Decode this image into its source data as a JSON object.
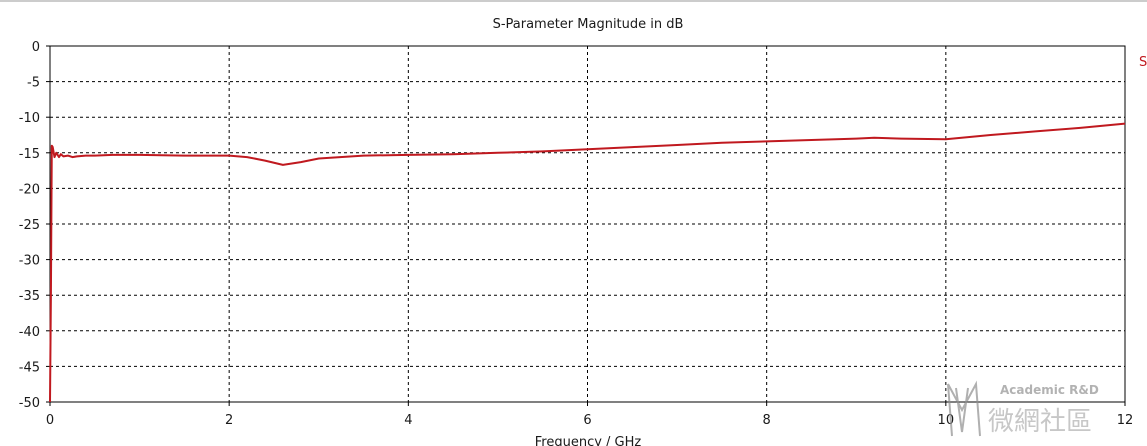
{
  "chart_data": {
    "type": "line",
    "title": "S-Parameter Magnitude in dB",
    "xlabel": "Frequency / GHz",
    "ylabel": "",
    "xlim": [
      0,
      12
    ],
    "ylim": [
      -50,
      0
    ],
    "x_ticks": [
      "0",
      "2",
      "4",
      "6",
      "8",
      "10",
      "12"
    ],
    "y_ticks": [
      "0",
      "-5",
      "-10",
      "-15",
      "-20",
      "-25",
      "-30",
      "-35",
      "-40",
      "-45",
      "-50"
    ],
    "grid": true,
    "legend_position": "right",
    "series": [
      {
        "name": "S",
        "color": "#c0191f",
        "x": [
          0,
          0.01,
          0.02,
          0.03,
          0.05,
          0.07,
          0.1,
          0.12,
          0.15,
          0.2,
          0.25,
          0.3,
          0.4,
          0.5,
          0.7,
          1.0,
          1.5,
          2.0,
          2.2,
          2.4,
          2.6,
          2.8,
          3.0,
          3.5,
          4.0,
          4.5,
          5.0,
          5.5,
          6.0,
          6.5,
          7.0,
          7.5,
          8.0,
          8.5,
          9.0,
          9.2,
          9.5,
          10.0,
          10.5,
          11.0,
          11.5,
          12.0
        ],
        "y": [
          -50,
          -35,
          -14,
          -14.2,
          -15.6,
          -15.0,
          -15.6,
          -15.2,
          -15.5,
          -15.4,
          -15.6,
          -15.5,
          -15.4,
          -15.4,
          -15.3,
          -15.3,
          -15.4,
          -15.4,
          -15.6,
          -16.1,
          -16.7,
          -16.3,
          -15.8,
          -15.4,
          -15.3,
          -15.2,
          -15.0,
          -14.8,
          -14.5,
          -14.2,
          -13.9,
          -13.6,
          -13.4,
          -13.2,
          -13.0,
          -12.9,
          -13.0,
          -13.1,
          -12.5,
          -12.0,
          -11.5,
          -10.9
        ]
      }
    ]
  },
  "watermark": {
    "text_en": "Academic R&D",
    "text_cn": "微網社區"
  }
}
